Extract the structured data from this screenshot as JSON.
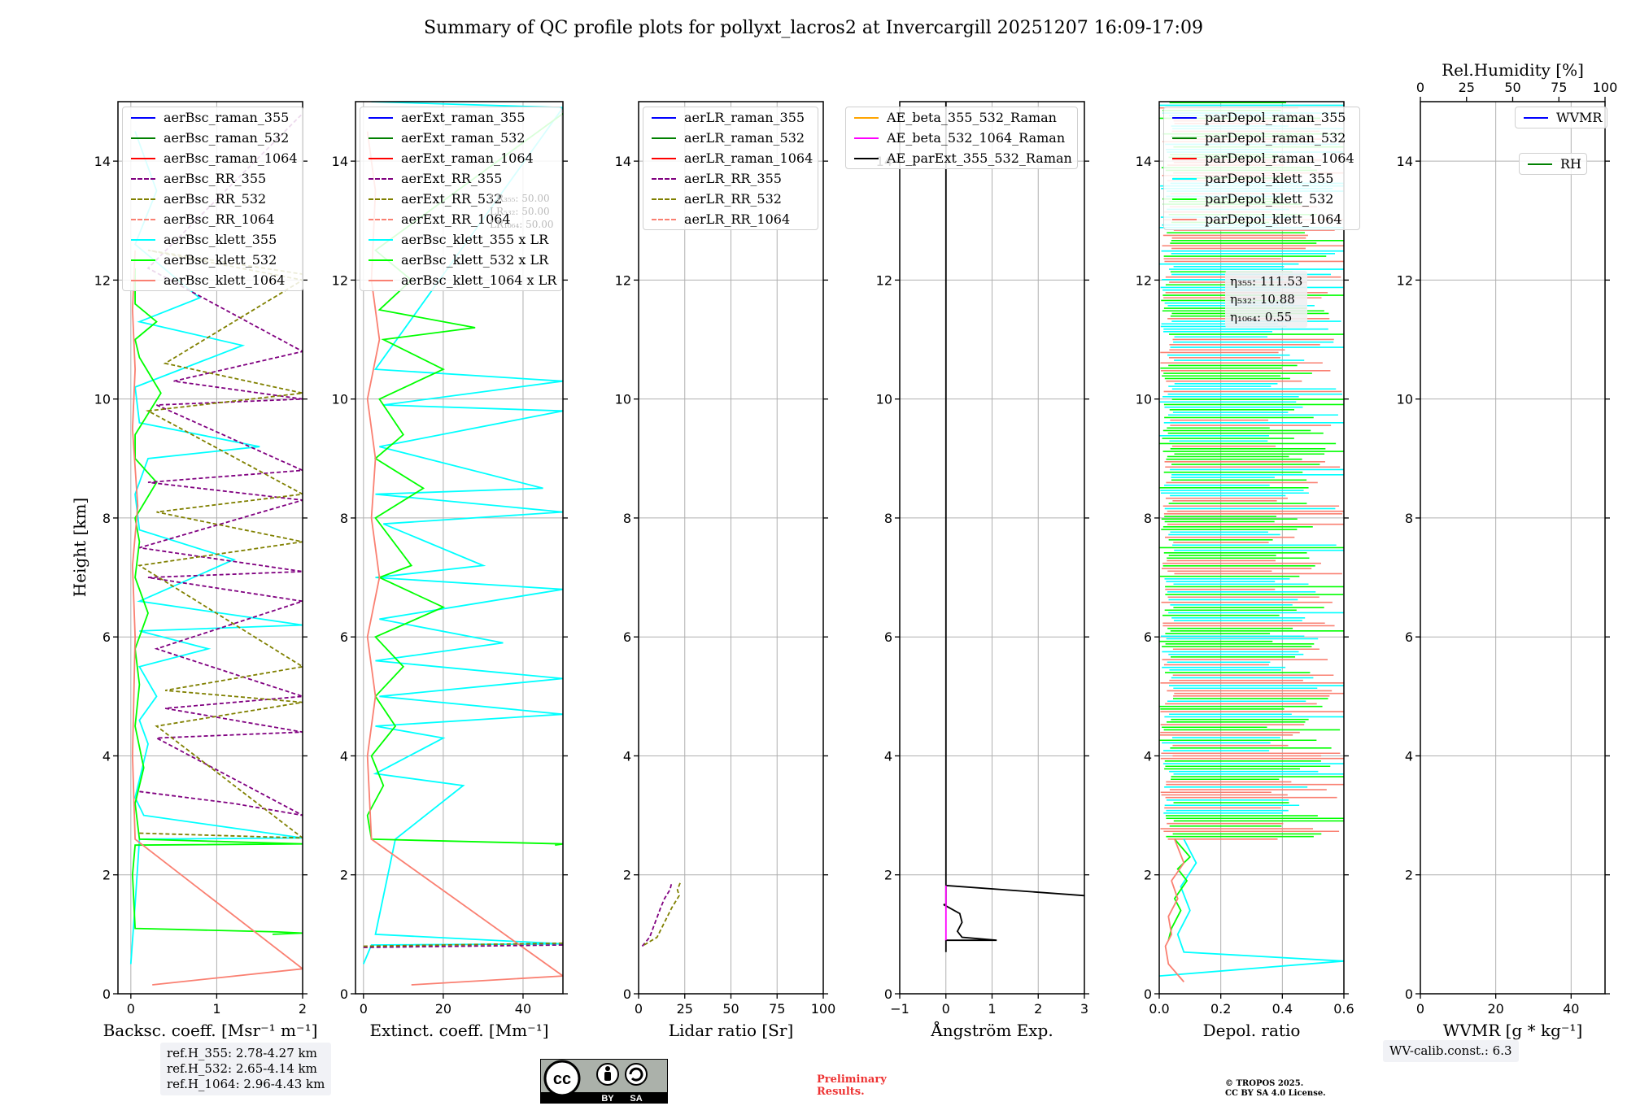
{
  "title": "Summary of QC profile plots for pollyxt_lacros2 at Invercargill 20251207 16:09-17:09",
  "height_label": "Height [km]",
  "height_ticks": [
    0,
    2,
    4,
    6,
    8,
    10,
    12,
    14
  ],
  "ylim": [
    0,
    15
  ],
  "colors": {
    "blue": "#0000ff",
    "green": "#008000",
    "red": "#ff0000",
    "purple": "#800080",
    "olive": "#808000",
    "salmon": "#fa8072",
    "cyan": "#00ffff",
    "lime": "#00ff00",
    "orange": "#ffa500",
    "magenta": "#ff00ff",
    "black": "#000000",
    "grid": "#b0b0b0"
  },
  "chart_data": [
    {
      "type": "line",
      "id": "bsc",
      "xlabel": "Backsc. coeff. [Msr⁻¹ m⁻¹]",
      "xlim": [
        -0.15,
        2
      ],
      "xticks": [
        0,
        1,
        2
      ],
      "legend": [
        {
          "label": "aerBsc_raman_355",
          "color": "#0000ff",
          "dash": false
        },
        {
          "label": "aerBsc_raman_532",
          "color": "#008000",
          "dash": false
        },
        {
          "label": "aerBsc_raman_1064",
          "color": "#ff0000",
          "dash": false
        },
        {
          "label": "aerBsc_RR_355",
          "color": "#800080",
          "dash": true
        },
        {
          "label": "aerBsc_RR_532",
          "color": "#808000",
          "dash": true
        },
        {
          "label": "aerBsc_RR_1064",
          "color": "#fa8072",
          "dash": true
        },
        {
          "label": "aerBsc_klett_355",
          "color": "#00ffff",
          "dash": false
        },
        {
          "label": "aerBsc_klett_532",
          "color": "#00ff00",
          "dash": false
        },
        {
          "label": "aerBsc_klett_1064",
          "color": "#fa8072",
          "dash": false
        }
      ],
      "series": [
        {
          "name": "aerBsc_klett_355",
          "color": "#00ffff",
          "x": [
            0,
            0.05,
            0.1,
            2,
            0.15,
            0.05,
            0.1,
            0.2,
            0.1,
            0.3,
            0.1,
            0.9,
            0.1,
            2,
            0.1,
            1.2,
            0.1,
            0.05,
            0.2,
            1.5,
            0.1,
            0.05,
            1.3,
            0.1,
            0.8,
            0.05,
            0.3,
            0.05
          ],
          "y": [
            0.5,
            1.5,
            2.6,
            2.62,
            3.0,
            3.3,
            3.6,
            4.2,
            4.6,
            5.0,
            5.5,
            5.8,
            6.1,
            6.2,
            6.6,
            7.3,
            7.8,
            8.4,
            9.0,
            9.2,
            9.6,
            10.2,
            10.9,
            11.3,
            11.7,
            12.6,
            13.5,
            14.5
          ]
        },
        {
          "name": "aerBsc_klett_532",
          "color": "#00ff00",
          "x": [
            1.65,
            2,
            1.7,
            0.05,
            0.02,
            0.05,
            2,
            0.1,
            0.05,
            0.15,
            0.05,
            0.1,
            0.05,
            0.2,
            0.05,
            0.1,
            0.05,
            0.3,
            0.05,
            0.05,
            0.35,
            0.1,
            0.05,
            0.3,
            0.05,
            0.05
          ],
          "y": [
            1.0,
            1.02,
            1.04,
            1.1,
            2.0,
            2.5,
            2.52,
            2.6,
            3.2,
            3.8,
            4.5,
            5.2,
            5.8,
            6.4,
            7.0,
            7.6,
            8.0,
            8.6,
            9.0,
            9.4,
            10.1,
            10.7,
            11.0,
            11.3,
            11.6,
            12.2
          ]
        },
        {
          "name": "aerBsc_klett_1064",
          "color": "#fa8072",
          "x": [
            0.25,
            2,
            0.05,
            0.02,
            0.05,
            0.02,
            0.08,
            0.02,
            0.05,
            0.02,
            0.05
          ],
          "y": [
            0.15,
            0.42,
            2.6,
            4.0,
            6.0,
            7.2,
            8.2,
            9.5,
            10.5,
            11.5,
            12.5
          ]
        },
        {
          "name": "aerBsc_RR_355",
          "color": "#800080",
          "dash": true,
          "x": [
            0.1,
            1.2,
            2,
            0.3,
            2,
            0.4,
            2,
            0.3,
            2,
            0.2,
            2,
            0.1,
            2,
            0.2,
            2,
            0.3,
            2,
            0.5,
            2,
            0.2,
            2
          ],
          "y": [
            3.4,
            3.2,
            3.0,
            4.3,
            4.4,
            4.8,
            5.0,
            5.8,
            6.6,
            7.0,
            7.1,
            7.5,
            8.3,
            8.6,
            8.8,
            9.9,
            10.0,
            10.3,
            10.8,
            12.2,
            14.8
          ]
        },
        {
          "name": "aerBsc_RR_532",
          "color": "#808000",
          "dash": true,
          "x": [
            0.1,
            2,
            0.3,
            2,
            0.4,
            2,
            0.1,
            2,
            0.3,
            2,
            0.2,
            2,
            0.4,
            2,
            0.2,
            2
          ],
          "y": [
            2.7,
            2.62,
            4.5,
            4.9,
            5.1,
            5.5,
            7.2,
            7.6,
            8.1,
            8.4,
            9.8,
            10.1,
            10.6,
            12.0,
            12.5,
            12.1
          ]
        }
      ]
    },
    {
      "type": "line",
      "id": "ext",
      "xlabel": "Extinct. coeff. [Mm⁻¹]",
      "xlim": [
        -2,
        50
      ],
      "xticks": [
        0,
        20,
        40
      ],
      "legend": [
        {
          "label": "aerExt_raman_355",
          "color": "#0000ff",
          "dash": false
        },
        {
          "label": "aerExt_raman_532",
          "color": "#008000",
          "dash": false
        },
        {
          "label": "aerExt_raman_1064",
          "color": "#ff0000",
          "dash": false
        },
        {
          "label": "aerExt_RR_355",
          "color": "#800080",
          "dash": true
        },
        {
          "label": "aerExt_RR_532",
          "color": "#808000",
          "dash": true
        },
        {
          "label": "aerExt_RR_1064",
          "color": "#fa8072",
          "dash": true
        },
        {
          "label": "aerBsc_klett_355 x LR",
          "color": "#00ffff",
          "dash": false
        },
        {
          "label": "aerBsc_klett_532 x LR",
          "color": "#00ff00",
          "dash": false
        },
        {
          "label": "aerBsc_klett_1064 x LR",
          "color": "#fa8072",
          "dash": false
        }
      ],
      "lr_labels": [
        "LR₃₅₅: 50.00",
        "LR₅₃₂: 50.00",
        "LR₁₀₆₄: 50.00"
      ],
      "series": [
        {
          "name": "aerBsc_klett_355 x LR",
          "color": "#00ffff",
          "x": [
            0,
            2,
            50,
            3,
            8,
            25,
            3,
            20,
            3,
            50,
            4,
            50,
            3,
            35,
            4,
            50,
            3,
            30,
            5,
            50,
            3,
            45,
            4,
            50,
            5,
            50,
            3,
            50,
            2
          ],
          "y": [
            0.5,
            0.82,
            0.84,
            1.0,
            2.6,
            3.5,
            3.7,
            4.3,
            4.5,
            4.7,
            5.0,
            5.3,
            5.6,
            5.9,
            6.3,
            6.8,
            7.0,
            7.2,
            7.9,
            8.1,
            8.4,
            8.5,
            9.2,
            9.8,
            9.9,
            10.3,
            10.5,
            14.9,
            15
          ]
        },
        {
          "name": "aerBsc_klett_532 x LR",
          "color": "#00ff00",
          "x": [
            48,
            50,
            2,
            1,
            5,
            2,
            8,
            3,
            10,
            3,
            20,
            4,
            12,
            3,
            15,
            3,
            10,
            4,
            20,
            5,
            28,
            4,
            12,
            3,
            50
          ],
          "y": [
            2.5,
            2.52,
            2.6,
            3.0,
            3.5,
            4.0,
            4.5,
            5.0,
            5.5,
            6.0,
            6.5,
            7.0,
            7.2,
            8.0,
            8.5,
            9.0,
            9.4,
            10.0,
            10.5,
            11.0,
            11.2,
            11.5,
            12.0,
            12.5,
            14.8
          ]
        },
        {
          "name": "aerBsc_klett_1064 x LR",
          "color": "#fa8072",
          "x": [
            12,
            50,
            2,
            1,
            3,
            1,
            4,
            2,
            3,
            1,
            4,
            2,
            3,
            1
          ],
          "y": [
            0.15,
            0.3,
            2.6,
            4.0,
            5.0,
            6.0,
            7.0,
            8.0,
            9.0,
            10.0,
            11.0,
            12.0,
            13.5,
            14.5
          ]
        },
        {
          "name": "aerExt_RR_355",
          "color": "#800080",
          "dash": true,
          "x": [
            0,
            50
          ],
          "y": [
            0.78,
            0.82
          ]
        },
        {
          "name": "aerExt_RR_532",
          "color": "#808000",
          "dash": true,
          "x": [
            0,
            50
          ],
          "y": [
            0.8,
            0.85
          ]
        }
      ]
    },
    {
      "type": "line",
      "id": "lr",
      "xlabel": "Lidar ratio [Sr]",
      "xlim": [
        0,
        100
      ],
      "xticks": [
        0,
        25,
        50,
        75,
        100
      ],
      "legend": [
        {
          "label": "aerLR_raman_355",
          "color": "#0000ff",
          "dash": false
        },
        {
          "label": "aerLR_raman_532",
          "color": "#008000",
          "dash": false
        },
        {
          "label": "aerLR_raman_1064",
          "color": "#ff0000",
          "dash": false
        },
        {
          "label": "aerLR_RR_355",
          "color": "#800080",
          "dash": true
        },
        {
          "label": "aerLR_RR_532",
          "color": "#808000",
          "dash": true
        },
        {
          "label": "aerLR_RR_1064",
          "color": "#fa8072",
          "dash": true
        }
      ],
      "series": [
        {
          "name": "aerLR_RR_355",
          "color": "#800080",
          "dash": true,
          "x": [
            2,
            6,
            9,
            12,
            14,
            17,
            18
          ],
          "y": [
            0.8,
            0.95,
            1.2,
            1.45,
            1.6,
            1.75,
            1.88
          ]
        },
        {
          "name": "aerLR_RR_532",
          "color": "#808000",
          "dash": true,
          "x": [
            3,
            10,
            14,
            18,
            22,
            21,
            23
          ],
          "y": [
            0.82,
            0.95,
            1.2,
            1.45,
            1.65,
            1.75,
            1.9
          ]
        }
      ]
    },
    {
      "type": "line",
      "id": "ae",
      "xlabel": "Ångström Exp.",
      "xlim": [
        -1,
        3
      ],
      "xticks": [
        -1,
        0,
        1,
        2,
        3
      ],
      "legend": [
        {
          "label": "AE_beta_355_532_Raman",
          "color": "#ffa500",
          "dash": false
        },
        {
          "label": "AE_beta_532_1064_Raman",
          "color": "#ff00ff",
          "dash": false
        },
        {
          "label": "AE_parExt_355_532_Raman",
          "color": "#000000",
          "dash": false
        }
      ],
      "series": [
        {
          "name": "AE_parExt_355_532_Raman",
          "color": "#000000",
          "x": [
            0,
            0,
            3,
            0,
            0,
            -0.05,
            0.3,
            0.35,
            0.25,
            0.35,
            1.1,
            0,
            0
          ],
          "y": [
            15,
            1.82,
            1.65,
            1.82,
            1.5,
            1.5,
            1.35,
            1.2,
            1.05,
            0.95,
            0.9,
            0.9,
            0.7
          ]
        },
        {
          "name": "AE_beta_532_1064_Raman",
          "color": "#ff00ff",
          "x": [
            0,
            0
          ],
          "y": [
            0.9,
            1.82
          ]
        }
      ]
    },
    {
      "type": "line",
      "id": "depol",
      "xlabel": "Depol. ratio",
      "xlim": [
        0,
        0.6
      ],
      "xticks": [
        0.0,
        0.2,
        0.4,
        0.6
      ],
      "legend": [
        {
          "label": "parDepol_raman_355",
          "color": "#0000ff",
          "dash": false
        },
        {
          "label": "parDepol_raman_532",
          "color": "#008000",
          "dash": false
        },
        {
          "label": "parDepol_raman_1064",
          "color": "#ff0000",
          "dash": false
        },
        {
          "label": "parDepol_klett_355",
          "color": "#00ffff",
          "dash": false
        },
        {
          "label": "parDepol_klett_532",
          "color": "#00ff00",
          "dash": false
        },
        {
          "label": "parDepol_klett_1064",
          "color": "#fa8072",
          "dash": false
        }
      ],
      "eta_labels": [
        "η₃₅₅: 111.53",
        "η₅₃₂: 10.88",
        "η₁₀₆₄: 0.55"
      ],
      "series": [
        {
          "name": "parDepol_klett_355",
          "color": "#00ffff",
          "x": [
            0.0,
            0.6,
            0.08,
            0.06,
            0.1,
            0.07,
            0.12,
            0.1,
            0.08
          ],
          "y": [
            0.3,
            0.55,
            0.7,
            1.0,
            1.4,
            1.8,
            2.2,
            2.4,
            2.6
          ]
        },
        {
          "name": "parDepol_klett_532",
          "color": "#00ff00",
          "x": [
            0.03,
            0.04,
            0.07,
            0.05,
            0.09,
            0.06,
            0.1,
            0.05
          ],
          "y": [
            0.9,
            1.1,
            1.4,
            1.6,
            1.9,
            2.1,
            2.3,
            2.6
          ]
        },
        {
          "name": "parDepol_klett_1064",
          "color": "#fa8072",
          "x": [
            0.08,
            0.03,
            0.02,
            0.04,
            0.03,
            0.06,
            0.04,
            0.08,
            0.05
          ],
          "y": [
            0.2,
            0.5,
            0.8,
            1.0,
            1.3,
            1.6,
            1.9,
            2.2,
            2.6
          ]
        }
      ],
      "band": {
        "y_from": 2.6,
        "y_to": 15,
        "colors": [
          "#00ff00",
          "#fa8072",
          "#00ffff"
        ]
      }
    },
    {
      "type": "line",
      "id": "wv",
      "xlabel": "WVMR [g * kg⁻¹]",
      "xlim": [
        0,
        49
      ],
      "xticks": [
        0,
        20,
        40
      ],
      "top_label": "Rel.Humidity [%]",
      "top_xlim": [
        0,
        100
      ],
      "top_xticks": [
        0,
        25,
        50,
        75,
        100
      ],
      "legend": [
        {
          "label": "WVMR",
          "color": "#0000ff",
          "dash": false
        }
      ],
      "legend2": [
        {
          "label": "RH",
          "color": "#008000",
          "dash": false
        }
      ],
      "series": []
    }
  ],
  "ref_box": [
    "ref.H_355: 2.78-4.27 km",
    "ref.H_532: 2.65-4.14 km",
    "ref.H_1064: 2.96-4.43 km"
  ],
  "wv_box": "WV-calib.const.: 6.3",
  "preliminary": [
    "Preliminary",
    "Results."
  ],
  "copyright": [
    "© TROPOS 2025.",
    "CC BY SA 4.0 License."
  ],
  "cc_badge": {
    "by": "BY",
    "sa": "SA"
  }
}
